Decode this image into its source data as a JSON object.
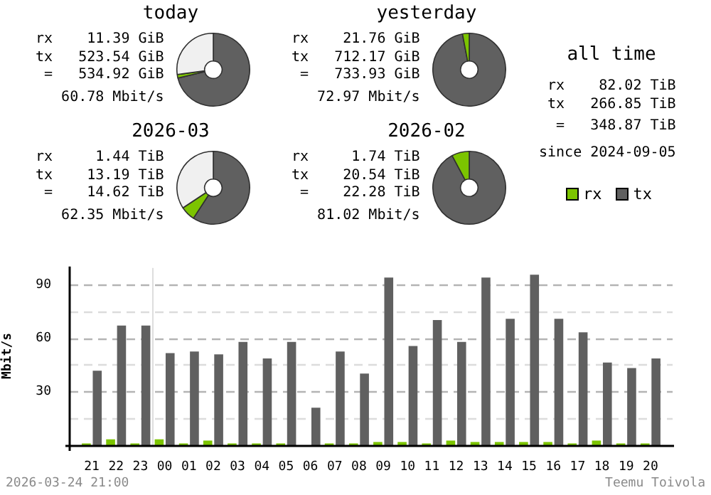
{
  "chart_data": [
    {
      "type": "donut",
      "title": "today",
      "categories": [
        null,
        null,
        null
      ],
      "values": [
        71.3,
        1.6,
        27.1
      ],
      "colors": [
        "#606060",
        "#7cc400",
        "#f0f0f0"
      ],
      "annotations": [
        "rx    11.39 GiB",
        "tx   523.54 GiB",
        " =   534.92 GiB",
        "   60.78 Mbit/s"
      ]
    },
    {
      "type": "donut",
      "title": "yesterday",
      "categories": [
        null,
        null
      ],
      "values": [
        97,
        3
      ],
      "colors": [
        "#606060",
        "#7cc400"
      ],
      "annotations": [
        "rx    21.76 GiB",
        "tx   712.17 GiB",
        " =   733.93 GiB",
        "   72.97 Mbit/s"
      ]
    },
    {
      "type": "other",
      "title": "all time",
      "annotations": [
        "rx    82.02 TiB",
        "tx   266.85 TiB",
        " =   348.87 TiB",
        "since 2024-09-05"
      ]
    },
    {
      "type": "donut",
      "title": "2026-03",
      "categories": [
        null,
        null,
        null
      ],
      "values": [
        59.2,
        6.5,
        34.3
      ],
      "colors": [
        "#606060",
        "#7cc400",
        "#f0f0f0"
      ],
      "annotations": [
        "rx     1.44 TiB",
        "tx    13.19 TiB",
        " =    14.62 TiB",
        "   62.35 Mbit/s"
      ]
    },
    {
      "type": "donut",
      "title": "2026-02",
      "categories": [
        null,
        null
      ],
      "values": [
        92.2,
        7.8
      ],
      "colors": [
        "#606060",
        "#7cc400"
      ],
      "annotations": [
        "rx     1.74 TiB",
        "tx    20.54 TiB",
        " =    22.28 TiB",
        "   81.02 Mbit/s"
      ]
    },
    {
      "type": "bar",
      "categories": [
        "21",
        "22",
        "23",
        "00",
        "01",
        "02",
        "03",
        "04",
        "05",
        "06",
        "07",
        "08",
        "09",
        "10",
        "11",
        "12",
        "13",
        "14",
        "15",
        "16",
        "17",
        "18",
        "19",
        "20"
      ],
      "series": [
        {
          "name": "rx",
          "color": "#7cc400",
          "values": [
            1,
            3.3,
            1,
            3.3,
            1,
            2.6,
            1,
            1,
            1,
            0,
            1,
            1,
            1.8,
            1.8,
            1,
            2.6,
            1.8,
            1.8,
            1.8,
            1.8,
            1,
            2.6,
            1,
            1
          ]
        },
        {
          "name": "tx",
          "color": "#606060",
          "values": [
            41.7,
            67,
            67,
            51.6,
            52.4,
            50.9,
            57.8,
            48.6,
            57.8,
            21,
            52.4,
            40.1,
            93.8,
            55.5,
            70.1,
            57.8,
            93.8,
            70.8,
            95.4,
            70.8,
            63.2,
            46.3,
            43.2,
            48.6
          ]
        }
      ],
      "ylabel": "Mbit/s",
      "ylim": [
        0,
        100
      ],
      "yticks": [
        {
          "value": 15,
          "label": null
        },
        30,
        {
          "value": 45,
          "label": null
        },
        60,
        {
          "value": 75,
          "label": null
        },
        90
      ],
      "grid": "y",
      "legend": "top right",
      "ref_lines": [
        {
          "axis": "x",
          "value": "00",
          "color": "#dddddd"
        }
      ],
      "annotations": [
        "2026-03-24 21:00",
        "Teemu Toivola"
      ]
    }
  ]
}
